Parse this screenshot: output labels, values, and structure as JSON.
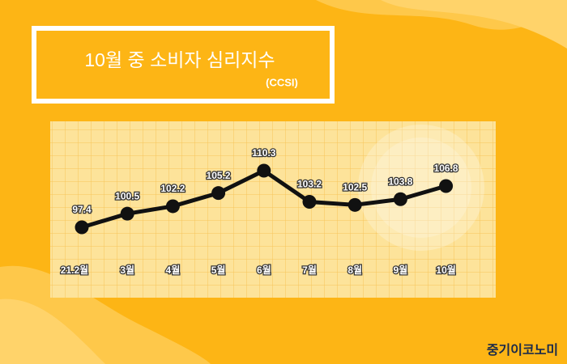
{
  "chart_data": {
    "type": "line",
    "title": "10월 중 소비자 심리지수",
    "subtitle": "(CCSI)",
    "source": "중기이코노미",
    "categories": [
      "21.2월",
      "3월",
      "4월",
      "5월",
      "6월",
      "7월",
      "8월",
      "9월",
      "10월"
    ],
    "values": [
      97.4,
      100.5,
      102.2,
      105.2,
      110.3,
      103.2,
      102.5,
      103.8,
      106.8
    ],
    "color": "#111111"
  }
}
